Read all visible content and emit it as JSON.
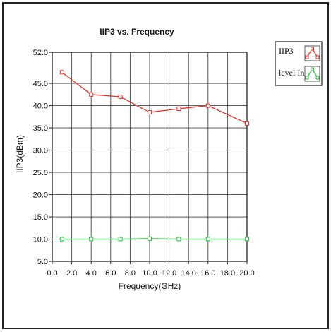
{
  "chart_data": {
    "type": "line",
    "title": "IIP3 vs. Frequency",
    "xlabel": "Frequency(GHz)",
    "ylabel": "IIP3(dBm)",
    "xlim": [
      0,
      20
    ],
    "ylim": [
      5,
      52
    ],
    "x_ticks": [
      "0.0",
      "2.0",
      "4.0",
      "6.0",
      "8.0",
      "10.0",
      "12.0",
      "14.0",
      "16.0",
      "18.0",
      "20.0"
    ],
    "y_ticks": [
      "5.0",
      "10.0",
      "15.0",
      "20.0",
      "25.0",
      "30.0",
      "35.0",
      "40.0",
      "45.0",
      "52.0"
    ],
    "grid": true,
    "legend_position": "top-right",
    "series": [
      {
        "name": "IIP3",
        "color": "#e8342a",
        "marker": "square",
        "x": [
          1,
          4,
          7,
          10,
          13,
          16,
          20
        ],
        "y": [
          47.5,
          42.5,
          42.0,
          38.5,
          39.3,
          40.0,
          36.0
        ]
      },
      {
        "name": "level In",
        "color": "#22c33a",
        "marker": "square",
        "x": [
          1,
          4,
          7,
          10,
          13,
          16,
          20
        ],
        "y": [
          10.0,
          10.0,
          10.0,
          10.1,
          10.0,
          10.0,
          10.0
        ]
      }
    ]
  }
}
